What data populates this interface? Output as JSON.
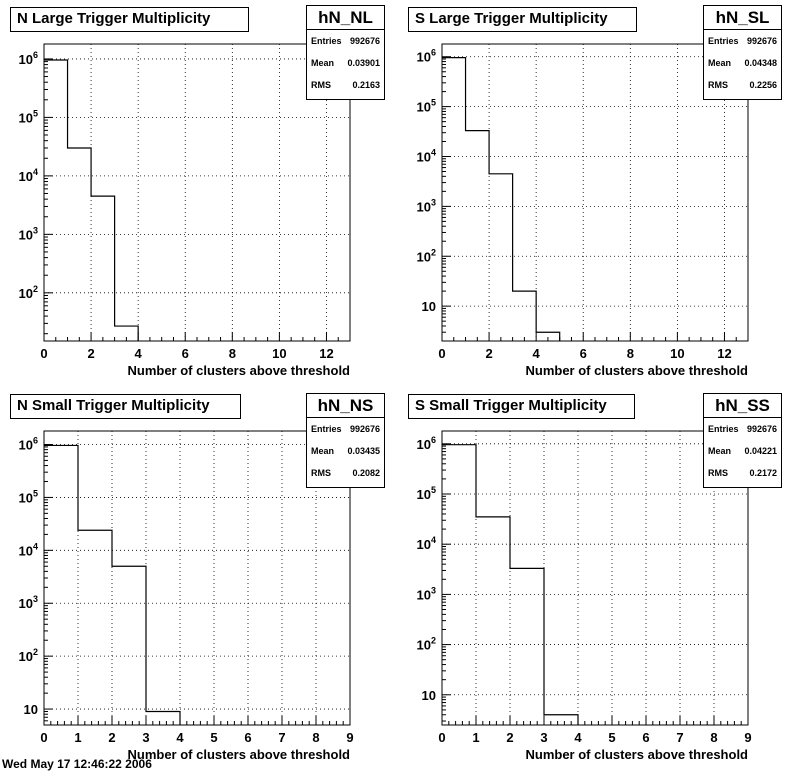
{
  "chart_data": [
    {
      "type": "bar",
      "title": "N Large Trigger Multiplicity",
      "xlabel": "Number of clusters above threshold",
      "ylabel": "",
      "xlim": [
        0,
        13
      ],
      "x_major_ticks": [
        0,
        2,
        4,
        6,
        8,
        10,
        12
      ],
      "y_scale": "log",
      "ylim": [
        15,
        1800000
      ],
      "y_tick_values": [
        100,
        1000,
        10000,
        100000,
        1000000
      ],
      "y_tick_labels": [
        {
          "base": "10",
          "exp": "2"
        },
        {
          "base": "10",
          "exp": "3"
        },
        {
          "base": "10",
          "exp": "4"
        },
        {
          "base": "10",
          "exp": "5"
        },
        {
          "base": "10",
          "exp": "6"
        }
      ],
      "bin_edges": [
        0,
        1,
        2,
        3,
        4
      ],
      "values": [
        960000,
        30000,
        4500,
        27
      ],
      "grid": true,
      "stats": {
        "name": "hN_NL",
        "entries_label": "Entries",
        "entries": "992676",
        "mean_label": "Mean",
        "mean": "0.03901",
        "rms_label": "RMS",
        "rms": "0.2163"
      }
    },
    {
      "type": "bar",
      "title": "S Large Trigger Multiplicity",
      "xlabel": "Number of clusters above threshold",
      "ylabel": "",
      "xlim": [
        0,
        13
      ],
      "x_major_ticks": [
        0,
        2,
        4,
        6,
        8,
        10,
        12
      ],
      "y_scale": "log",
      "ylim": [
        2,
        1800000
      ],
      "y_tick_values": [
        10,
        100,
        1000,
        10000,
        100000,
        1000000
      ],
      "y_tick_labels": [
        {
          "base": "10",
          "exp": ""
        },
        {
          "base": "10",
          "exp": "2"
        },
        {
          "base": "10",
          "exp": "3"
        },
        {
          "base": "10",
          "exp": "4"
        },
        {
          "base": "10",
          "exp": "5"
        },
        {
          "base": "10",
          "exp": "6"
        }
      ],
      "bin_edges": [
        0,
        1,
        2,
        3,
        4,
        5
      ],
      "values": [
        960000,
        33000,
        4500,
        20,
        3
      ],
      "grid": true,
      "stats": {
        "name": "hN_SL",
        "entries_label": "Entries",
        "entries": "992676",
        "mean_label": "Mean",
        "mean": "0.04348",
        "rms_label": "RMS",
        "rms": "0.2256"
      }
    },
    {
      "type": "bar",
      "title": "N Small Trigger Multiplicity",
      "xlabel": "Number of clusters above threshold",
      "ylabel": "",
      "xlim": [
        0,
        9
      ],
      "x_major_ticks": [
        0,
        1,
        2,
        3,
        4,
        5,
        6,
        7,
        8,
        9
      ],
      "y_scale": "log",
      "ylim": [
        5,
        1800000
      ],
      "y_tick_values": [
        10,
        100,
        1000,
        10000,
        100000,
        1000000
      ],
      "y_tick_labels": [
        {
          "base": "10",
          "exp": ""
        },
        {
          "base": "10",
          "exp": "2"
        },
        {
          "base": "10",
          "exp": "3"
        },
        {
          "base": "10",
          "exp": "4"
        },
        {
          "base": "10",
          "exp": "5"
        },
        {
          "base": "10",
          "exp": "6"
        }
      ],
      "bin_edges": [
        0,
        1,
        2,
        3,
        4
      ],
      "values": [
        960000,
        24000,
        5000,
        9
      ],
      "grid": true,
      "stats": {
        "name": "hN_NS",
        "entries_label": "Entries",
        "entries": "992676",
        "mean_label": "Mean",
        "mean": "0.03435",
        "rms_label": "RMS",
        "rms": "0.2082"
      }
    },
    {
      "type": "bar",
      "title": "S Small Trigger Multiplicity",
      "xlabel": "Number of clusters above threshold",
      "ylabel": "",
      "xlim": [
        0,
        9
      ],
      "x_major_ticks": [
        0,
        1,
        2,
        3,
        4,
        5,
        6,
        7,
        8,
        9
      ],
      "y_scale": "log",
      "ylim": [
        2.5,
        1800000
      ],
      "y_tick_values": [
        10,
        100,
        1000,
        10000,
        100000,
        1000000
      ],
      "y_tick_labels": [
        {
          "base": "10",
          "exp": ""
        },
        {
          "base": "10",
          "exp": "2"
        },
        {
          "base": "10",
          "exp": "3"
        },
        {
          "base": "10",
          "exp": "4"
        },
        {
          "base": "10",
          "exp": "5"
        },
        {
          "base": "10",
          "exp": "6"
        }
      ],
      "bin_edges": [
        0,
        1,
        2,
        3,
        4
      ],
      "values": [
        960000,
        35000,
        3300,
        4
      ],
      "grid": true,
      "stats": {
        "name": "hN_SS",
        "entries_label": "Entries",
        "entries": "992676",
        "mean_label": "Mean",
        "mean": "0.04221",
        "rms_label": "RMS",
        "rms": "0.2172"
      }
    }
  ],
  "footer": {
    "text": "Wed May 17 12:46:22 2006"
  }
}
